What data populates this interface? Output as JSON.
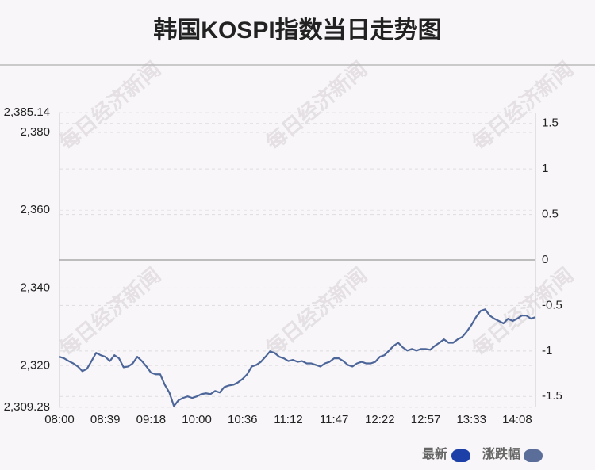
{
  "chart_data": {
    "type": "line",
    "title": "韩国KOSPI指数当日走势图",
    "watermark": "每日经济新闻",
    "categories": [
      "08:00",
      null,
      null,
      null,
      null,
      null,
      null,
      null,
      null,
      null,
      "08:39",
      null,
      null,
      null,
      null,
      null,
      null,
      null,
      null,
      null,
      "09:18",
      null,
      null,
      null,
      null,
      null,
      null,
      null,
      null,
      null,
      "10:00",
      null,
      null,
      null,
      null,
      null,
      null,
      null,
      null,
      null,
      "10:36",
      null,
      null,
      null,
      null,
      null,
      null,
      null,
      null,
      null,
      "11:12",
      null,
      null,
      null,
      null,
      null,
      null,
      null,
      null,
      null,
      "11:47",
      null,
      null,
      null,
      null,
      null,
      null,
      null,
      null,
      null,
      "12:22",
      null,
      null,
      null,
      null,
      null,
      null,
      null,
      null,
      null,
      "12:57",
      null,
      null,
      null,
      null,
      null,
      null,
      null,
      null,
      null,
      "13:33",
      null,
      null,
      null,
      null,
      null,
      null,
      null,
      null,
      null,
      "14:08",
      null,
      null,
      null,
      null
    ],
    "series": [
      {
        "name": "最新",
        "color": "#4d6699",
        "values": [
          2322.3,
          2321.9,
          2321.2,
          2320.6,
          2319.8,
          2318.6,
          2319.2,
          2321.2,
          2323.3,
          2322.7,
          2322.3,
          2321.2,
          2322.7,
          2321.9,
          2319.6,
          2319.8,
          2320.6,
          2322.3,
          2321.2,
          2319.8,
          2318.2,
          2317.8,
          2317.8,
          2315.1,
          2313.1,
          2309.6,
          2311.1,
          2311.7,
          2312.1,
          2311.7,
          2312.1,
          2312.7,
          2312.9,
          2312.7,
          2313.5,
          2313.1,
          2314.5,
          2314.9,
          2315.1,
          2315.7,
          2316.6,
          2317.8,
          2319.8,
          2320.2,
          2321.0,
          2322.3,
          2323.7,
          2323.3,
          2322.3,
          2321.9,
          2321.2,
          2321.5,
          2321.0,
          2321.2,
          2320.6,
          2320.6,
          2320.2,
          2319.8,
          2320.6,
          2321.0,
          2321.9,
          2321.9,
          2321.2,
          2320.2,
          2319.8,
          2320.6,
          2321.0,
          2320.6,
          2320.6,
          2321.0,
          2322.3,
          2322.7,
          2323.9,
          2325.1,
          2325.9,
          2324.7,
          2323.9,
          2324.3,
          2323.9,
          2324.3,
          2324.3,
          2324.1,
          2325.1,
          2325.9,
          2326.8,
          2325.9,
          2325.9,
          2326.8,
          2327.4,
          2328.8,
          2330.5,
          2332.5,
          2334.1,
          2334.5,
          2332.9,
          2332.1,
          2331.5,
          2330.9,
          2332.1,
          2331.5,
          2332.1,
          2332.9,
          2332.9,
          2332.1,
          2332.5
        ]
      }
    ],
    "legend": [
      {
        "name": "最新",
        "color": "#1c3fa8"
      },
      {
        "name": "涨跌幅",
        "color": "#5b6e9a"
      }
    ],
    "ylim": [
      2309.28,
      2385.14
    ],
    "yticks": [
      {
        "value": 2309.28,
        "label": "2,309.28"
      },
      {
        "value": 2320,
        "label": "2,320"
      },
      {
        "value": 2340,
        "label": "2,340"
      },
      {
        "value": 2360,
        "label": "2,360"
      },
      {
        "value": 2380,
        "label": "2,380"
      },
      {
        "value": 2385.14,
        "label": "2,385.14"
      }
    ],
    "y2lim": [
      -1.62,
      1.62
    ],
    "y2ticks": [
      -1.5,
      -1,
      -0.5,
      0,
      0.5,
      1,
      1.5
    ]
  }
}
